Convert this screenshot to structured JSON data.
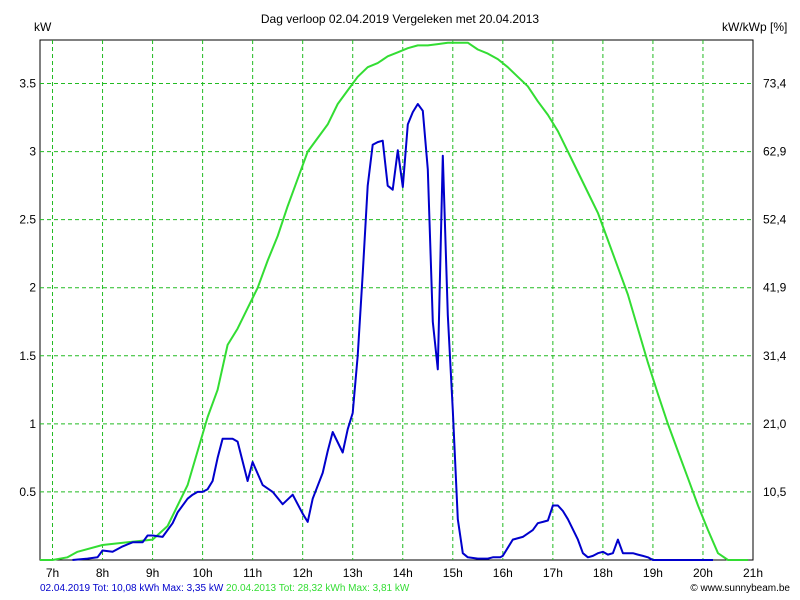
{
  "chart_data": {
    "type": "line",
    "title": "Dag  verloop 02.04.2019   Vergeleken met 20.04.2013",
    "ylabel_left": "kW",
    "ylabel_right": "kW/kWp [%]",
    "x_ticks": [
      "7h",
      "8h",
      "9h",
      "10h",
      "11h",
      "12h",
      "13h",
      "14h",
      "15h",
      "16h",
      "17h",
      "18h",
      "19h",
      "20h",
      "21h"
    ],
    "y_ticks_left": [
      "0.5",
      "1",
      "1.5",
      "2",
      "2.5",
      "3",
      "3.5"
    ],
    "y_ticks_right": [
      "10,5",
      "21,0",
      "31,4",
      "41,9",
      "52,4",
      "62,9",
      "73,4"
    ],
    "xlim": [
      6.75,
      21
    ],
    "ylim": [
      0,
      3.82
    ],
    "grid": true,
    "series": [
      {
        "name": "02.04.2019",
        "color": "#0000cc",
        "x": [
          7.4,
          7.7,
          7.9,
          8.0,
          8.2,
          8.4,
          8.6,
          8.8,
          8.9,
          9.0,
          9.2,
          9.4,
          9.5,
          9.7,
          9.8,
          9.9,
          10.0,
          10.1,
          10.2,
          10.3,
          10.4,
          10.5,
          10.6,
          10.7,
          10.9,
          11.0,
          11.2,
          11.4,
          11.6,
          11.8,
          12.0,
          12.1,
          12.2,
          12.4,
          12.5,
          12.6,
          12.8,
          12.9,
          13.0,
          13.1,
          13.2,
          13.3,
          13.4,
          13.5,
          13.6,
          13.7,
          13.8,
          13.9,
          14.0,
          14.1,
          14.2,
          14.3,
          14.4,
          14.5,
          14.6,
          14.7,
          14.8,
          14.9,
          15.0,
          15.05,
          15.1,
          15.2,
          15.3,
          15.5,
          15.7,
          15.8,
          15.85,
          15.9,
          15.95,
          16.0,
          16.2,
          16.4,
          16.6,
          16.7,
          16.8,
          16.9,
          17.0,
          17.1,
          17.2,
          17.3,
          17.5,
          17.6,
          17.7,
          17.8,
          17.9,
          18.0,
          18.1,
          18.2,
          18.3,
          18.4,
          18.5,
          18.6,
          18.7,
          18.8,
          18.9,
          19.0,
          19.1,
          19.2,
          19.3,
          19.4,
          19.5,
          19.6,
          19.7,
          19.8,
          19.9,
          20.0,
          20.2
        ],
        "values": [
          0.0,
          0.01,
          0.02,
          0.07,
          0.06,
          0.1,
          0.13,
          0.13,
          0.18,
          0.18,
          0.17,
          0.27,
          0.35,
          0.45,
          0.48,
          0.5,
          0.5,
          0.52,
          0.58,
          0.75,
          0.89,
          0.89,
          0.89,
          0.87,
          0.58,
          0.72,
          0.55,
          0.5,
          0.41,
          0.48,
          0.34,
          0.28,
          0.45,
          0.64,
          0.8,
          0.94,
          0.79,
          0.96,
          1.08,
          1.5,
          2.1,
          2.75,
          3.05,
          3.07,
          3.08,
          2.75,
          2.72,
          3.01,
          2.74,
          3.2,
          3.29,
          3.35,
          3.3,
          2.87,
          1.75,
          1.4,
          2.97,
          1.8,
          1.1,
          0.7,
          0.3,
          0.05,
          0.02,
          0.01,
          0.01,
          0.02,
          0.02,
          0.02,
          0.02,
          0.03,
          0.15,
          0.17,
          0.22,
          0.27,
          0.28,
          0.29,
          0.4,
          0.4,
          0.36,
          0.3,
          0.15,
          0.05,
          0.02,
          0.03,
          0.05,
          0.06,
          0.04,
          0.05,
          0.15,
          0.05,
          0.05,
          0.05,
          0.04,
          0.03,
          0.02,
          0.0,
          0.0,
          0.0,
          0.0,
          0.0,
          0.0,
          0.0,
          0.0,
          0.0,
          0.0,
          0.0,
          0.0
        ]
      },
      {
        "name": "20.04.2013",
        "color": "#33dd33",
        "x": [
          6.75,
          7.0,
          7.3,
          7.5,
          8.0,
          8.5,
          9.0,
          9.3,
          9.5,
          9.7,
          9.9,
          10.1,
          10.3,
          10.5,
          10.7,
          10.9,
          11.1,
          11.3,
          11.5,
          11.7,
          11.9,
          12.1,
          12.3,
          12.5,
          12.7,
          12.9,
          13.1,
          13.3,
          13.5,
          13.7,
          13.9,
          14.1,
          14.3,
          14.5,
          14.7,
          14.9,
          15.1,
          15.3,
          15.5,
          15.7,
          15.9,
          16.1,
          16.3,
          16.5,
          16.7,
          16.9,
          17.1,
          17.3,
          17.5,
          17.7,
          17.9,
          18.1,
          18.3,
          18.5,
          18.7,
          18.9,
          19.1,
          19.3,
          19.5,
          19.7,
          19.9,
          20.1,
          20.3,
          20.5,
          20.7,
          20.9
        ],
        "values": [
          0.0,
          0.0,
          0.02,
          0.06,
          0.11,
          0.13,
          0.15,
          0.25,
          0.4,
          0.55,
          0.8,
          1.05,
          1.25,
          1.58,
          1.7,
          1.85,
          2.0,
          2.2,
          2.38,
          2.6,
          2.8,
          3.0,
          3.1,
          3.2,
          3.35,
          3.45,
          3.55,
          3.62,
          3.65,
          3.7,
          3.73,
          3.76,
          3.78,
          3.78,
          3.79,
          3.8,
          3.8,
          3.8,
          3.75,
          3.72,
          3.68,
          3.62,
          3.55,
          3.48,
          3.37,
          3.27,
          3.15,
          3.0,
          2.85,
          2.7,
          2.55,
          2.35,
          2.15,
          1.95,
          1.7,
          1.45,
          1.22,
          1.0,
          0.8,
          0.6,
          0.4,
          0.22,
          0.05,
          0.0,
          0.0,
          0.0
        ]
      }
    ],
    "footer_left": {
      "series1": "02.04.2019 Tot: 10,08 kWh Max: 3,35 kW",
      "series2": "20.04.2013 Tot: 28,32 kWh Max: 3,81 kW"
    },
    "footer_right": "© www.sunnybeam.be"
  }
}
